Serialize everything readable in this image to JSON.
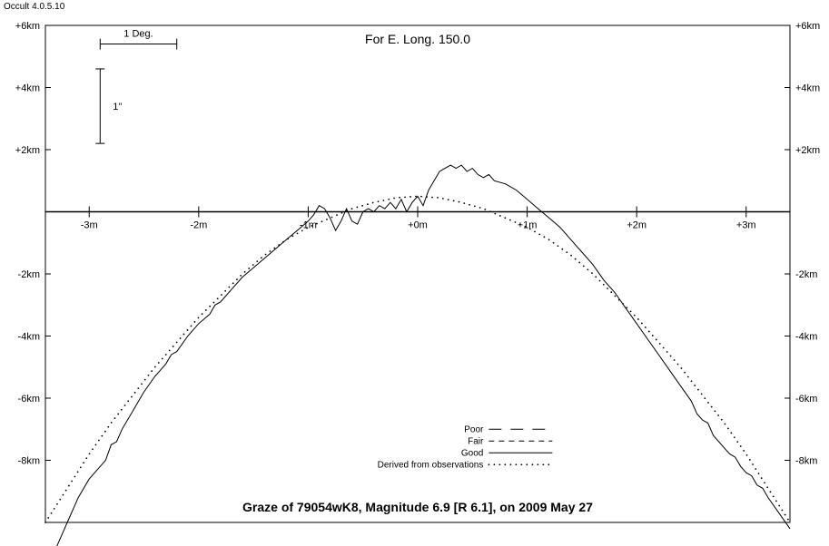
{
  "version_label": "Occult 4.0.5.10",
  "chart": {
    "type": "line",
    "title": "For E. Long. 150.0",
    "title_fontsize": 14,
    "subtitle": "Graze of  79054wK8,  Magnitude 6.9 [R 6.1],  on 2009 May 27",
    "subtitle_fontsize": 14,
    "background_color": "#ffffff",
    "axis_color": "#000000",
    "tick_fontsize": 11,
    "xlim": [
      -3.4,
      3.4
    ],
    "ylim": [
      -10,
      6
    ],
    "xticks": [
      -3,
      -2,
      -1,
      0,
      1,
      2,
      3
    ],
    "xtick_labels": [
      "-3m",
      "-2m",
      "-1m",
      "+0m",
      "+1m",
      "+2m",
      "+3m"
    ],
    "yticks": [
      -8,
      -6,
      -4,
      -2,
      2,
      4,
      6
    ],
    "ytick_labels": [
      "-8km",
      "-6km",
      "-4km",
      "-2km",
      "+2km",
      "+4km",
      "+6km"
    ],
    "scale_bars": {
      "deg": {
        "label": "1 Deg.",
        "x_start": -2.9,
        "x_end": -2.2,
        "y": 5.4,
        "fontsize": 11
      },
      "arcsec": {
        "label": "1\"",
        "y_top": 4.6,
        "y_bot": 2.2,
        "x": -2.9,
        "fontsize": 11
      }
    },
    "legend": {
      "x_label": 0.6,
      "y_start": -7.0,
      "fontsize": 10,
      "entries": [
        {
          "label": "Poor",
          "style": "dash-long"
        },
        {
          "label": "Fair",
          "style": "dash-short"
        },
        {
          "label": "Good",
          "style": "solid"
        },
        {
          "label": "Derived from observations",
          "style": "dotted"
        }
      ]
    },
    "series": [
      {
        "name": "good-profile",
        "style": "solid",
        "color": "#000000",
        "line_width": 1,
        "points": [
          [
            -3.4,
            -11.5
          ],
          [
            -3.3,
            -10.8
          ],
          [
            -3.2,
            -10.0
          ],
          [
            -3.1,
            -9.2
          ],
          [
            -3.0,
            -8.6
          ],
          [
            -2.9,
            -8.2
          ],
          [
            -2.85,
            -8.0
          ],
          [
            -2.8,
            -7.5
          ],
          [
            -2.75,
            -7.4
          ],
          [
            -2.7,
            -7.0
          ],
          [
            -2.6,
            -6.4
          ],
          [
            -2.5,
            -5.8
          ],
          [
            -2.4,
            -5.3
          ],
          [
            -2.3,
            -4.9
          ],
          [
            -2.25,
            -4.6
          ],
          [
            -2.2,
            -4.5
          ],
          [
            -2.1,
            -4.0
          ],
          [
            -2.0,
            -3.6
          ],
          [
            -1.9,
            -3.3
          ],
          [
            -1.85,
            -3.0
          ],
          [
            -1.8,
            -2.9
          ],
          [
            -1.7,
            -2.5
          ],
          [
            -1.6,
            -2.1
          ],
          [
            -1.5,
            -1.8
          ],
          [
            -1.4,
            -1.5
          ],
          [
            -1.3,
            -1.2
          ],
          [
            -1.2,
            -0.9
          ],
          [
            -1.1,
            -0.6
          ],
          [
            -1.0,
            -0.3
          ],
          [
            -0.95,
            -0.1
          ],
          [
            -0.9,
            0.2
          ],
          [
            -0.85,
            0.1
          ],
          [
            -0.8,
            -0.2
          ],
          [
            -0.75,
            -0.6
          ],
          [
            -0.7,
            -0.3
          ],
          [
            -0.65,
            0.1
          ],
          [
            -0.6,
            -0.3
          ],
          [
            -0.55,
            -0.4
          ],
          [
            -0.5,
            0.0
          ],
          [
            -0.45,
            0.1
          ],
          [
            -0.4,
            0.0
          ],
          [
            -0.35,
            0.2
          ],
          [
            -0.3,
            0.1
          ],
          [
            -0.25,
            0.3
          ],
          [
            -0.2,
            0.1
          ],
          [
            -0.15,
            0.4
          ],
          [
            -0.1,
            0.0
          ],
          [
            -0.05,
            0.3
          ],
          [
            0.0,
            0.5
          ],
          [
            0.05,
            0.2
          ],
          [
            0.1,
            0.7
          ],
          [
            0.15,
            1.0
          ],
          [
            0.2,
            1.3
          ],
          [
            0.25,
            1.4
          ],
          [
            0.3,
            1.5
          ],
          [
            0.35,
            1.4
          ],
          [
            0.4,
            1.5
          ],
          [
            0.45,
            1.3
          ],
          [
            0.5,
            1.4
          ],
          [
            0.55,
            1.2
          ],
          [
            0.6,
            1.1
          ],
          [
            0.65,
            1.2
          ],
          [
            0.7,
            1.0
          ],
          [
            0.8,
            0.9
          ],
          [
            0.9,
            0.7
          ],
          [
            1.0,
            0.4
          ],
          [
            1.1,
            0.1
          ],
          [
            1.2,
            -0.2
          ],
          [
            1.3,
            -0.5
          ],
          [
            1.4,
            -0.9
          ],
          [
            1.5,
            -1.3
          ],
          [
            1.6,
            -1.7
          ],
          [
            1.7,
            -2.2
          ],
          [
            1.8,
            -2.6
          ],
          [
            1.9,
            -3.1
          ],
          [
            2.0,
            -3.6
          ],
          [
            2.1,
            -4.1
          ],
          [
            2.2,
            -4.6
          ],
          [
            2.3,
            -5.1
          ],
          [
            2.4,
            -5.6
          ],
          [
            2.5,
            -6.1
          ],
          [
            2.55,
            -6.5
          ],
          [
            2.6,
            -6.7
          ],
          [
            2.65,
            -6.8
          ],
          [
            2.7,
            -7.2
          ],
          [
            2.8,
            -7.6
          ],
          [
            2.85,
            -7.8
          ],
          [
            2.9,
            -7.9
          ],
          [
            2.95,
            -8.2
          ],
          [
            3.0,
            -8.4
          ],
          [
            3.05,
            -8.5
          ],
          [
            3.1,
            -8.8
          ],
          [
            3.15,
            -8.9
          ],
          [
            3.2,
            -9.2
          ],
          [
            3.3,
            -9.7
          ],
          [
            3.4,
            -10.2
          ]
        ]
      },
      {
        "name": "derived-profile",
        "style": "dotted",
        "color": "#000000",
        "line_width": 1,
        "dot_spacing": 6,
        "points": [
          [
            -3.4,
            -10.0
          ],
          [
            -3.2,
            -8.9
          ],
          [
            -3.0,
            -7.8
          ],
          [
            -2.8,
            -6.8
          ],
          [
            -2.6,
            -5.9
          ],
          [
            -2.4,
            -5.0
          ],
          [
            -2.2,
            -4.2
          ],
          [
            -2.0,
            -3.4
          ],
          [
            -1.8,
            -2.7
          ],
          [
            -1.6,
            -2.0
          ],
          [
            -1.4,
            -1.4
          ],
          [
            -1.2,
            -0.9
          ],
          [
            -1.0,
            -0.5
          ],
          [
            -0.8,
            -0.2
          ],
          [
            -0.6,
            0.1
          ],
          [
            -0.4,
            0.3
          ],
          [
            -0.2,
            0.45
          ],
          [
            0.0,
            0.5
          ],
          [
            0.2,
            0.45
          ],
          [
            0.4,
            0.3
          ],
          [
            0.6,
            0.1
          ],
          [
            0.8,
            -0.2
          ],
          [
            1.0,
            -0.5
          ],
          [
            1.2,
            -0.9
          ],
          [
            1.4,
            -1.4
          ],
          [
            1.6,
            -2.0
          ],
          [
            1.8,
            -2.7
          ],
          [
            2.0,
            -3.4
          ],
          [
            2.2,
            -4.2
          ],
          [
            2.4,
            -5.0
          ],
          [
            2.6,
            -5.9
          ],
          [
            2.8,
            -6.8
          ],
          [
            3.0,
            -7.8
          ],
          [
            3.2,
            -8.9
          ],
          [
            3.4,
            -10.0
          ]
        ]
      }
    ]
  }
}
